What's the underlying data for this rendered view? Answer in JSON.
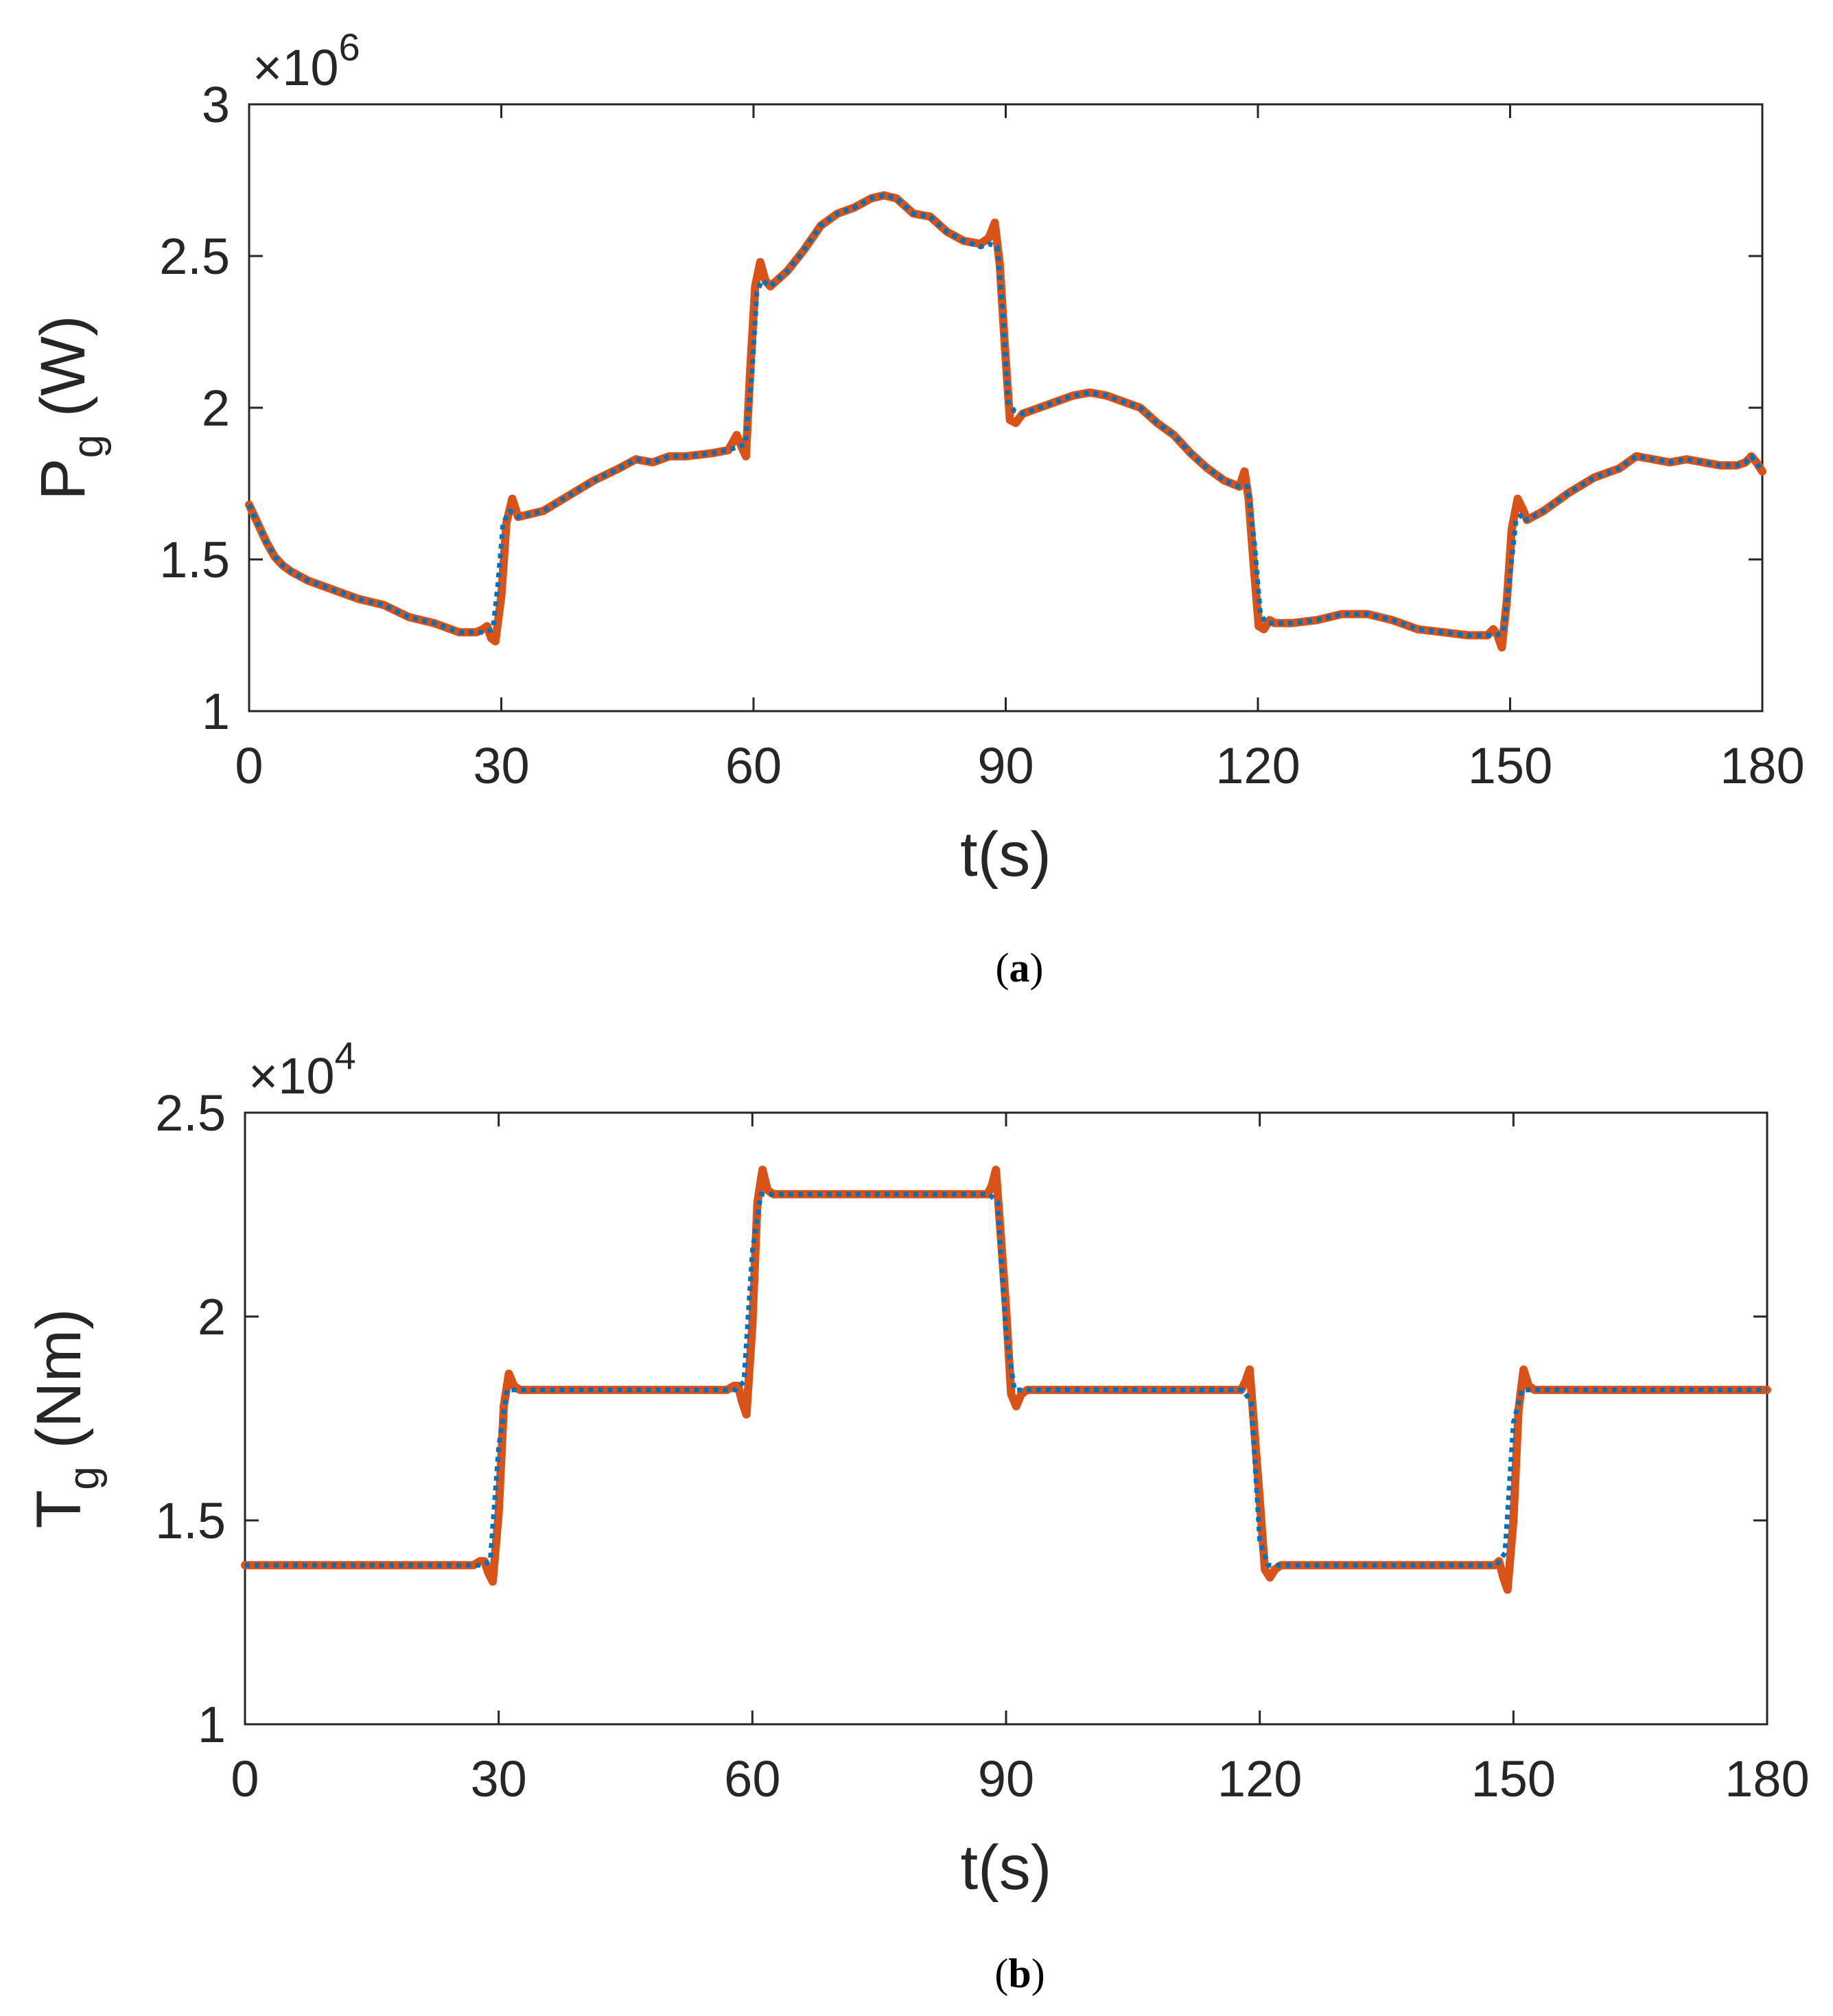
{
  "colors": {
    "series_solid": "#D95319",
    "series_dotted": "#0072BD",
    "axis": "#262626",
    "background": "#FFFFFF"
  },
  "chart_data": [
    {
      "panel": "a",
      "type": "line",
      "caption": {
        "open": "(",
        "letter": "a",
        "close": ")"
      },
      "xlabel": "t(s)",
      "ylabel": {
        "main": "P",
        "sub": "g",
        "unit": "(W)"
      },
      "exponent": {
        "prefix": "×10",
        "power": "6"
      },
      "xlim": [
        0,
        180
      ],
      "ylim": [
        1,
        3
      ],
      "xticks": [
        0,
        30,
        60,
        90,
        120,
        150,
        180
      ],
      "yticks": [
        1,
        1.5,
        2,
        2.5,
        3
      ],
      "ytick_labels": [
        "1",
        "1.5",
        "2",
        "2.5",
        "3"
      ],
      "series": [
        {
          "name": "solid",
          "style": "solid",
          "x": [
            0,
            1,
            2,
            3,
            4,
            5,
            7,
            10,
            13,
            16,
            19,
            22,
            25,
            27,
            27.8,
            28.3,
            28.8,
            29.3,
            30,
            30.6,
            31.3,
            32,
            35,
            38,
            41,
            44,
            46,
            48,
            50,
            52,
            55,
            57,
            58,
            58.6,
            59.1,
            59.6,
            60.2,
            60.8,
            61.4,
            62,
            64,
            66,
            68,
            70,
            72,
            74,
            75.5,
            77,
            79,
            81,
            83,
            85,
            87,
            88,
            88.7,
            89.3,
            89.9,
            90.5,
            91.2,
            92,
            94,
            96,
            98,
            100,
            102,
            104,
            106,
            108,
            110,
            112,
            114,
            116,
            117.8,
            118.4,
            118.9,
            119.5,
            120.1,
            120.7,
            121.4,
            122,
            124,
            127,
            130,
            133,
            136,
            139,
            142,
            145,
            147.3,
            148,
            148.5,
            149,
            149.6,
            150.2,
            150.9,
            151.6,
            152,
            154,
            157,
            160,
            163,
            165,
            167,
            169,
            171,
            173,
            175,
            177,
            178,
            178.7,
            179.3,
            180
          ],
          "y": [
            1.68,
            1.62,
            1.56,
            1.51,
            1.48,
            1.46,
            1.43,
            1.4,
            1.37,
            1.35,
            1.31,
            1.29,
            1.26,
            1.26,
            1.27,
            1.28,
            1.24,
            1.23,
            1.38,
            1.62,
            1.7,
            1.64,
            1.66,
            1.71,
            1.76,
            1.8,
            1.83,
            1.82,
            1.84,
            1.84,
            1.85,
            1.86,
            1.91,
            1.87,
            1.84,
            2.12,
            2.4,
            2.48,
            2.42,
            2.4,
            2.45,
            2.52,
            2.6,
            2.64,
            2.66,
            2.69,
            2.7,
            2.69,
            2.64,
            2.63,
            2.58,
            2.55,
            2.54,
            2.56,
            2.61,
            2.47,
            2.2,
            1.96,
            1.95,
            1.98,
            2.0,
            2.02,
            2.04,
            2.05,
            2.04,
            2.02,
            2.0,
            1.95,
            1.91,
            1.85,
            1.8,
            1.76,
            1.74,
            1.79,
            1.7,
            1.48,
            1.28,
            1.27,
            1.3,
            1.29,
            1.29,
            1.3,
            1.32,
            1.32,
            1.3,
            1.27,
            1.26,
            1.25,
            1.25,
            1.27,
            1.25,
            1.21,
            1.36,
            1.6,
            1.7,
            1.66,
            1.63,
            1.66,
            1.72,
            1.77,
            1.8,
            1.84,
            1.83,
            1.82,
            1.83,
            1.82,
            1.81,
            1.81,
            1.82,
            1.84,
            1.82,
            1.79
          ]
        },
        {
          "name": "dotted",
          "style": "dotted",
          "x": [
            0,
            1,
            2,
            3,
            4,
            5,
            7,
            10,
            13,
            16,
            19,
            22,
            25,
            27,
            28,
            29,
            29.6,
            30.2,
            31,
            32,
            35,
            38,
            41,
            44,
            46,
            48,
            50,
            52,
            55,
            57,
            58,
            59,
            59.8,
            60.4,
            61,
            62,
            64,
            66,
            68,
            70,
            72,
            74,
            75.5,
            77,
            79,
            81,
            83,
            85,
            87,
            88,
            89,
            89.7,
            90.3,
            91,
            92,
            94,
            96,
            98,
            100,
            102,
            104,
            106,
            108,
            110,
            112,
            114,
            116,
            117.8,
            118.8,
            119.6,
            120.3,
            121,
            122,
            124,
            127,
            130,
            133,
            136,
            139,
            142,
            145,
            147.3,
            148.3,
            149.2,
            150,
            150.7,
            151.5,
            152,
            154,
            157,
            160,
            163,
            165,
            167,
            169,
            171,
            173,
            175,
            177,
            178,
            178.7,
            179.3,
            180
          ],
          "y": [
            1.68,
            1.62,
            1.56,
            1.51,
            1.48,
            1.46,
            1.43,
            1.4,
            1.37,
            1.35,
            1.31,
            1.29,
            1.26,
            1.26,
            1.26,
            1.27,
            1.42,
            1.62,
            1.66,
            1.64,
            1.66,
            1.71,
            1.76,
            1.8,
            1.83,
            1.82,
            1.84,
            1.84,
            1.85,
            1.86,
            1.87,
            1.88,
            2.1,
            2.38,
            2.42,
            2.4,
            2.45,
            2.52,
            2.6,
            2.64,
            2.66,
            2.69,
            2.7,
            2.69,
            2.64,
            2.63,
            2.58,
            2.55,
            2.53,
            2.54,
            2.53,
            2.3,
            2.02,
            1.99,
            1.98,
            2.0,
            2.02,
            2.04,
            2.05,
            2.04,
            2.02,
            2.0,
            1.95,
            1.91,
            1.85,
            1.8,
            1.76,
            1.74,
            1.74,
            1.55,
            1.32,
            1.29,
            1.29,
            1.29,
            1.3,
            1.32,
            1.32,
            1.3,
            1.27,
            1.26,
            1.25,
            1.25,
            1.25,
            1.26,
            1.45,
            1.63,
            1.65,
            1.63,
            1.66,
            1.72,
            1.77,
            1.8,
            1.84,
            1.83,
            1.82,
            1.83,
            1.82,
            1.81,
            1.81,
            1.82,
            1.84,
            1.82,
            1.79
          ]
        }
      ]
    },
    {
      "panel": "b",
      "type": "line",
      "caption": {
        "open": "(",
        "letter": "b",
        "close": ")"
      },
      "xlabel": "t(s)",
      "ylabel": {
        "main": "T",
        "sub": "g",
        "unit": "(Nm)"
      },
      "exponent": {
        "prefix": "×10",
        "power": "4"
      },
      "xlim": [
        0,
        180
      ],
      "ylim": [
        1,
        2.5
      ],
      "xticks": [
        0,
        30,
        60,
        90,
        120,
        150,
        180
      ],
      "yticks": [
        1,
        1.5,
        2,
        2.5
      ],
      "ytick_labels": [
        "1",
        "1.5",
        "2",
        "2.5"
      ],
      "series": [
        {
          "name": "solid",
          "style": "solid",
          "x": [
            0,
            27,
            27.8,
            28.3,
            28.8,
            29.3,
            30,
            30.6,
            31.2,
            31.8,
            32.5,
            57,
            57.8,
            58.3,
            58.8,
            59.3,
            60,
            60.6,
            61.2,
            61.8,
            62.5,
            87,
            87.8,
            88.3,
            88.8,
            89.3,
            90,
            90.6,
            91.2,
            91.8,
            92.5,
            117,
            117.8,
            118.3,
            118.8,
            119.3,
            120,
            120.6,
            121.2,
            121.8,
            122.5,
            147,
            147.8,
            148.3,
            148.8,
            149.3,
            150,
            150.6,
            151.2,
            151.8,
            152.5,
            180
          ],
          "y": [
            1.39,
            1.39,
            1.4,
            1.4,
            1.37,
            1.35,
            1.52,
            1.78,
            1.86,
            1.83,
            1.82,
            1.82,
            1.83,
            1.83,
            1.79,
            1.76,
            1.98,
            2.28,
            2.36,
            2.31,
            2.3,
            2.3,
            2.3,
            2.32,
            2.36,
            2.22,
            2.02,
            1.81,
            1.78,
            1.81,
            1.82,
            1.82,
            1.82,
            1.84,
            1.87,
            1.74,
            1.55,
            1.38,
            1.36,
            1.38,
            1.39,
            1.39,
            1.39,
            1.4,
            1.36,
            1.33,
            1.5,
            1.77,
            1.87,
            1.83,
            1.82,
            1.82
          ]
        },
        {
          "name": "dotted",
          "style": "dotted",
          "x": [
            0,
            28,
            29,
            30,
            31,
            32,
            58,
            59,
            60,
            61,
            62,
            88,
            89,
            90,
            91,
            92,
            118,
            119,
            120,
            121,
            122,
            148,
            149,
            150,
            151,
            152,
            180
          ],
          "y": [
            1.39,
            1.39,
            1.4,
            1.68,
            1.82,
            1.82,
            1.82,
            1.84,
            2.16,
            2.3,
            2.3,
            2.3,
            2.28,
            1.96,
            1.82,
            1.82,
            1.82,
            1.79,
            1.45,
            1.39,
            1.39,
            1.39,
            1.42,
            1.74,
            1.82,
            1.82,
            1.82
          ]
        }
      ]
    }
  ]
}
